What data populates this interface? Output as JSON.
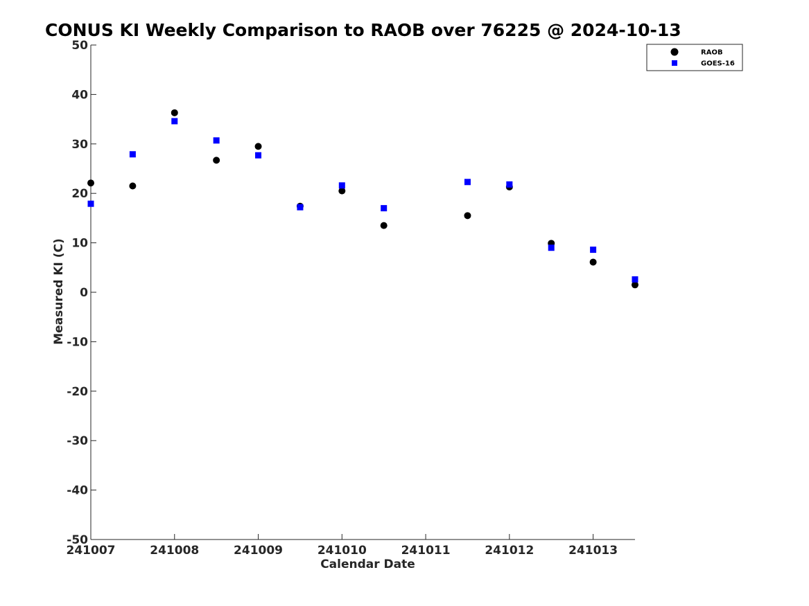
{
  "chart_data": {
    "type": "scatter",
    "title": "CONUS KI Weekly Comparison to RAOB over 76225 @ 2024-10-13",
    "xlabel": "Calendar Date",
    "ylabel": "Measured KI (C)",
    "xlim": [
      "2024-10-07 00:00",
      "2024-10-13 12:00"
    ],
    "ylim": [
      -50,
      50
    ],
    "x_ticks": [
      {
        "value": "2024-10-07 00:00",
        "label": "241007"
      },
      {
        "value": "2024-10-08 00:00",
        "label": "241008"
      },
      {
        "value": "2024-10-09 00:00",
        "label": "241009"
      },
      {
        "value": "2024-10-10 00:00",
        "label": "241010"
      },
      {
        "value": "2024-10-11 00:00",
        "label": "241011"
      },
      {
        "value": "2024-10-12 00:00",
        "label": "241012"
      },
      {
        "value": "2024-10-13 00:00",
        "label": "241013"
      }
    ],
    "y_ticks": [
      50,
      40,
      30,
      20,
      10,
      0,
      -10,
      -20,
      -30,
      -40,
      -50
    ],
    "grid": false,
    "legend_position": "top-right",
    "series": [
      {
        "name": "RAOB",
        "marker": "circle",
        "color": "#000000",
        "points": [
          {
            "x": "2024-10-07 00:00",
            "y": 22.1
          },
          {
            "x": "2024-10-07 12:00",
            "y": 21.5
          },
          {
            "x": "2024-10-08 00:00",
            "y": 36.3
          },
          {
            "x": "2024-10-08 12:00",
            "y": 26.7
          },
          {
            "x": "2024-10-09 00:00",
            "y": 29.5
          },
          {
            "x": "2024-10-09 12:00",
            "y": 17.4
          },
          {
            "x": "2024-10-10 00:00",
            "y": 20.5
          },
          {
            "x": "2024-10-10 12:00",
            "y": 13.5
          },
          {
            "x": "2024-10-11 12:00",
            "y": 15.5
          },
          {
            "x": "2024-10-12 00:00",
            "y": 21.3
          },
          {
            "x": "2024-10-12 12:00",
            "y": 9.9
          },
          {
            "x": "2024-10-13 00:00",
            "y": 6.1
          },
          {
            "x": "2024-10-13 12:00",
            "y": 1.5
          }
        ]
      },
      {
        "name": "GOES-16",
        "marker": "square",
        "color": "#0000ff",
        "points": [
          {
            "x": "2024-10-07 00:00",
            "y": 17.9
          },
          {
            "x": "2024-10-07 12:00",
            "y": 27.9
          },
          {
            "x": "2024-10-08 00:00",
            "y": 34.6
          },
          {
            "x": "2024-10-08 12:00",
            "y": 30.7
          },
          {
            "x": "2024-10-09 00:00",
            "y": 27.7
          },
          {
            "x": "2024-10-09 12:00",
            "y": 17.2
          },
          {
            "x": "2024-10-10 00:00",
            "y": 21.6
          },
          {
            "x": "2024-10-10 12:00",
            "y": 17.0
          },
          {
            "x": "2024-10-11 12:00",
            "y": 22.3
          },
          {
            "x": "2024-10-12 00:00",
            "y": 21.8
          },
          {
            "x": "2024-10-12 12:00",
            "y": 9.0
          },
          {
            "x": "2024-10-13 00:00",
            "y": 8.6
          },
          {
            "x": "2024-10-13 12:00",
            "y": 2.6
          }
        ]
      }
    ]
  }
}
